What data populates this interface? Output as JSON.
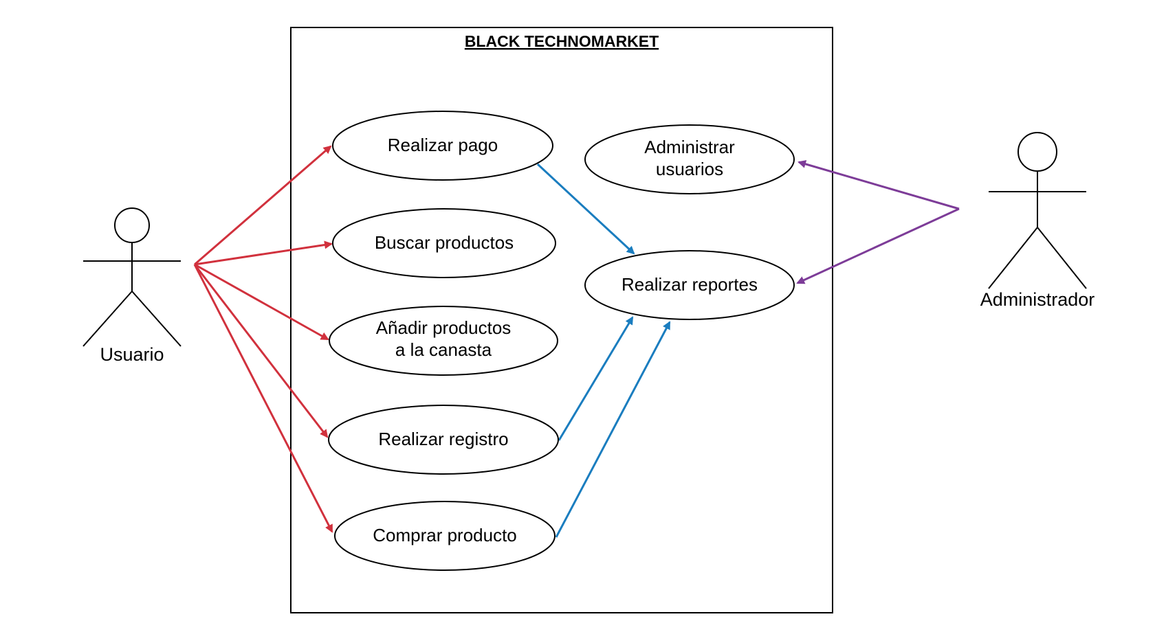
{
  "system": {
    "title": "BLACK TECHNOMARKET"
  },
  "actors": {
    "usuario": {
      "label": "Usuario"
    },
    "administrador": {
      "label": "Administrador"
    }
  },
  "use_cases": {
    "realizar_pago": {
      "lines": [
        "Realizar pago"
      ]
    },
    "buscar_productos": {
      "lines": [
        "Buscar productos"
      ]
    },
    "anadir_productos": {
      "lines": [
        "Añadir productos",
        "a la canasta"
      ]
    },
    "realizar_registro": {
      "lines": [
        "Realizar registro"
      ]
    },
    "comprar_producto": {
      "lines": [
        "Comprar producto"
      ]
    },
    "administrar_usuarios": {
      "lines": [
        "Administrar",
        "usuarios"
      ]
    },
    "realizar_reportes": {
      "lines": [
        "Realizar reportes"
      ]
    }
  },
  "colors": {
    "usuario_links": "#d1313d",
    "report_links": "#1a7dbf",
    "admin_links": "#7d3c98",
    "outline": "#000000"
  }
}
